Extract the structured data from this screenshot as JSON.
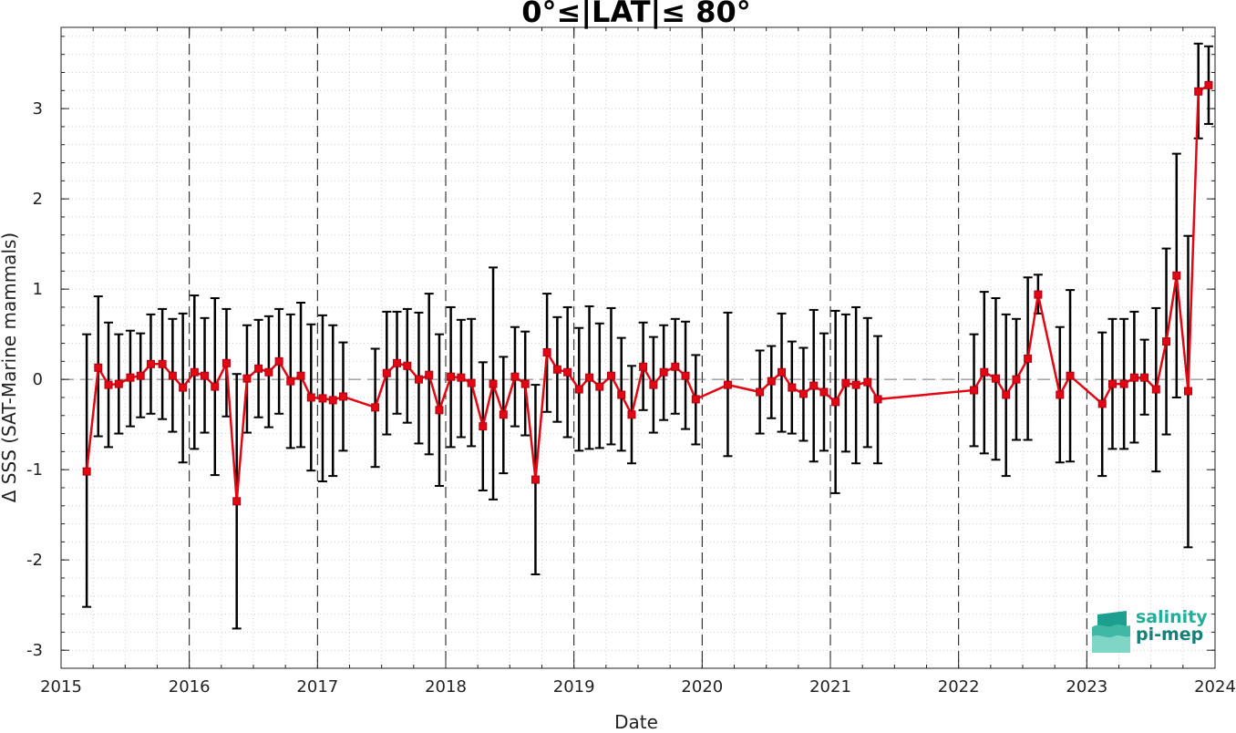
{
  "chart_data": {
    "type": "line",
    "title": "0°≤|LAT|≤ 80°",
    "xlabel": "Date",
    "ylabel": "Δ SSS (SAT-Marine mammals)",
    "xlim": [
      2015,
      2024
    ],
    "ylim": [
      -3.2,
      3.9
    ],
    "xticks": [
      2015,
      2016,
      2017,
      2018,
      2019,
      2020,
      2021,
      2022,
      2023,
      2024
    ],
    "xtick_labels": [
      "2015",
      "2016",
      "2017",
      "2018",
      "2019",
      "2020",
      "2021",
      "2022",
      "2023",
      "2024"
    ],
    "yticks": [
      -3,
      -2,
      -1,
      0,
      1,
      2,
      3
    ],
    "ytick_labels": [
      "-3",
      "-2",
      "-1",
      "0",
      "1",
      "2",
      "3"
    ],
    "grid": "dotted minor grid with dashed vertical lines at year boundaries",
    "zero_line": "dashed gray",
    "series": [
      {
        "color": "#e30613",
        "marker": "square",
        "points": [
          [
            2015.2,
            -1.02,
            -2.52,
            0.5
          ],
          [
            2015.29,
            0.13,
            -0.63,
            0.92
          ],
          [
            2015.37,
            -0.06,
            -0.75,
            0.63
          ],
          [
            2015.45,
            -0.05,
            -0.6,
            0.5
          ],
          [
            2015.54,
            0.02,
            -0.52,
            0.54
          ],
          [
            2015.62,
            0.04,
            -0.42,
            0.51
          ],
          [
            2015.7,
            0.17,
            -0.38,
            0.72
          ],
          [
            2015.79,
            0.17,
            -0.44,
            0.78
          ],
          [
            2015.87,
            0.04,
            -0.58,
            0.67
          ],
          [
            2015.95,
            -0.09,
            -0.92,
            0.73
          ],
          [
            2016.04,
            0.08,
            -0.77,
            0.93
          ],
          [
            2016.12,
            0.04,
            -0.59,
            0.68
          ],
          [
            2016.2,
            -0.08,
            -1.06,
            0.9
          ],
          [
            2016.29,
            0.18,
            -0.41,
            0.78
          ],
          [
            2016.37,
            -1.35,
            -2.76,
            0.06
          ],
          [
            2016.45,
            0.01,
            -0.59,
            0.6
          ],
          [
            2016.54,
            0.12,
            -0.42,
            0.66
          ],
          [
            2016.62,
            0.08,
            -0.53,
            0.7
          ],
          [
            2016.7,
            0.2,
            -0.38,
            0.78
          ],
          [
            2016.79,
            -0.02,
            -0.76,
            0.72
          ],
          [
            2016.87,
            0.04,
            -0.75,
            0.85
          ],
          [
            2016.95,
            -0.2,
            -1.01,
            0.61
          ],
          [
            2017.04,
            -0.21,
            -1.13,
            0.71
          ],
          [
            2017.12,
            -0.23,
            -1.07,
            0.6
          ],
          [
            2017.2,
            -0.19,
            -0.79,
            0.41
          ],
          [
            2017.45,
            -0.31,
            -0.97,
            0.34
          ],
          [
            2017.54,
            0.07,
            -0.61,
            0.75
          ],
          [
            2017.62,
            0.18,
            -0.38,
            0.75
          ],
          [
            2017.7,
            0.15,
            -0.48,
            0.78
          ],
          [
            2017.79,
            0.0,
            -0.71,
            0.74
          ],
          [
            2017.87,
            0.05,
            -0.83,
            0.95
          ],
          [
            2017.95,
            -0.34,
            -1.18,
            0.5
          ],
          [
            2018.04,
            0.03,
            -0.75,
            0.8
          ],
          [
            2018.12,
            0.02,
            -0.64,
            0.66
          ],
          [
            2018.2,
            -0.04,
            -0.74,
            0.67
          ],
          [
            2018.29,
            -0.52,
            -1.23,
            0.19
          ],
          [
            2018.37,
            -0.05,
            -1.33,
            1.24
          ],
          [
            2018.45,
            -0.39,
            -1.04,
            0.25
          ],
          [
            2018.54,
            0.03,
            -0.52,
            0.58
          ],
          [
            2018.62,
            -0.05,
            -0.62,
            0.53
          ],
          [
            2018.7,
            -1.11,
            -2.16,
            -0.06
          ],
          [
            2018.79,
            0.3,
            -0.36,
            0.95
          ],
          [
            2018.87,
            0.11,
            -0.47,
            0.69
          ],
          [
            2018.95,
            0.08,
            -0.64,
            0.8
          ],
          [
            2019.04,
            -0.11,
            -0.79,
            0.57
          ],
          [
            2019.12,
            0.02,
            -0.77,
            0.81
          ],
          [
            2019.2,
            -0.08,
            -0.76,
            0.62
          ],
          [
            2019.29,
            0.04,
            -0.72,
            0.79
          ],
          [
            2019.37,
            -0.17,
            -0.79,
            0.46
          ],
          [
            2019.45,
            -0.39,
            -0.93,
            0.15
          ],
          [
            2019.54,
            0.14,
            -0.34,
            0.63
          ],
          [
            2019.62,
            -0.06,
            -0.59,
            0.47
          ],
          [
            2019.7,
            0.08,
            -0.45,
            0.6
          ],
          [
            2019.79,
            0.14,
            -0.38,
            0.67
          ],
          [
            2019.87,
            0.04,
            -0.55,
            0.64
          ],
          [
            2019.95,
            -0.22,
            -0.72,
            0.27
          ],
          [
            2020.2,
            -0.06,
            -0.85,
            0.74
          ],
          [
            2020.45,
            -0.14,
            -0.6,
            0.32
          ],
          [
            2020.54,
            -0.02,
            -0.43,
            0.37
          ],
          [
            2020.62,
            0.08,
            -0.58,
            0.73
          ],
          [
            2020.7,
            -0.09,
            -0.6,
            0.42
          ],
          [
            2020.79,
            -0.16,
            -0.68,
            0.35
          ],
          [
            2020.87,
            -0.07,
            -0.91,
            0.77
          ],
          [
            2020.95,
            -0.14,
            -0.79,
            0.51
          ],
          [
            2021.04,
            -0.25,
            -1.26,
            0.76
          ],
          [
            2021.12,
            -0.04,
            -0.8,
            0.72
          ],
          [
            2021.2,
            -0.06,
            -0.93,
            0.8
          ],
          [
            2021.29,
            -0.03,
            -0.75,
            0.68
          ],
          [
            2021.37,
            -0.22,
            -0.93,
            0.48
          ],
          [
            2022.12,
            -0.12,
            -0.74,
            0.5
          ],
          [
            2022.2,
            0.08,
            -0.82,
            0.97
          ],
          [
            2022.29,
            0.01,
            -0.89,
            0.9
          ],
          [
            2022.37,
            -0.17,
            -1.07,
            0.72
          ],
          [
            2022.45,
            0.0,
            -0.67,
            0.67
          ],
          [
            2022.54,
            0.23,
            -0.67,
            1.13
          ],
          [
            2022.62,
            0.94,
            0.73,
            1.16
          ],
          [
            2022.79,
            -0.17,
            -0.92,
            0.58
          ],
          [
            2022.87,
            0.04,
            -0.91,
            0.99
          ],
          [
            2023.12,
            -0.27,
            -1.07,
            0.52
          ],
          [
            2023.2,
            -0.05,
            -0.77,
            0.67
          ],
          [
            2023.29,
            -0.05,
            -0.77,
            0.67
          ],
          [
            2023.37,
            0.02,
            -0.7,
            0.75
          ],
          [
            2023.45,
            0.02,
            -0.39,
            0.44
          ],
          [
            2023.54,
            -0.11,
            -1.02,
            0.79
          ],
          [
            2023.62,
            0.42,
            -0.61,
            1.45
          ],
          [
            2023.7,
            1.15,
            -0.2,
            2.5
          ],
          [
            2023.79,
            -0.13,
            -1.86,
            1.59
          ],
          [
            2023.87,
            3.19,
            2.67,
            3.72
          ],
          [
            2023.95,
            3.26,
            2.83,
            3.69
          ]
        ]
      }
    ]
  },
  "logo": {
    "line1": "salinity",
    "line2": "pi-mep"
  }
}
